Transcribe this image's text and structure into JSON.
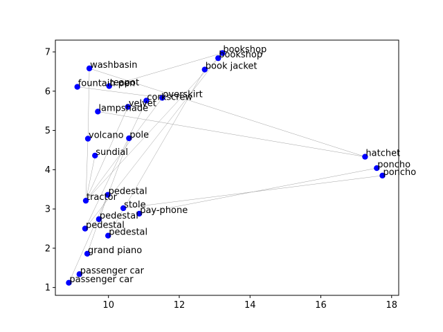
{
  "chart_data": {
    "type": "scatter",
    "title": "",
    "xlabel": "",
    "ylabel": "",
    "xlim": [
      8.5,
      18.2
    ],
    "ylim": [
      0.8,
      7.3
    ],
    "xticks": [
      10,
      12,
      14,
      16,
      18
    ],
    "yticks": [
      1,
      2,
      3,
      4,
      5,
      6,
      7
    ],
    "grid": false,
    "point_color": "#0000ff",
    "edge_color": "#a0a0a0",
    "points": [
      {
        "label": "bookshop",
        "x": 13.22,
        "y": 6.97
      },
      {
        "label": "bookshop",
        "x": 13.1,
        "y": 6.84
      },
      {
        "label": "book jacket",
        "x": 12.72,
        "y": 6.55
      },
      {
        "label": "washbasin",
        "x": 9.46,
        "y": 6.58
      },
      {
        "label": "fountain pen",
        "x": 9.12,
        "y": 6.11
      },
      {
        "label": "teapot",
        "x": 10.02,
        "y": 6.13
      },
      {
        "label": "overskirt",
        "x": 11.52,
        "y": 5.83
      },
      {
        "label": "corkscrew",
        "x": 11.07,
        "y": 5.76
      },
      {
        "label": "velvet",
        "x": 10.55,
        "y": 5.6
      },
      {
        "label": "lampshade",
        "x": 9.7,
        "y": 5.48
      },
      {
        "label": "volcano",
        "x": 9.42,
        "y": 4.79
      },
      {
        "label": "pole",
        "x": 10.58,
        "y": 4.8
      },
      {
        "label": "sundial",
        "x": 9.62,
        "y": 4.36
      },
      {
        "label": "hatchet",
        "x": 17.25,
        "y": 4.33
      },
      {
        "label": "poncho",
        "x": 17.58,
        "y": 4.04
      },
      {
        "label": "poncho",
        "x": 17.74,
        "y": 3.85
      },
      {
        "label": "pedestal",
        "x": 9.98,
        "y": 3.36
      },
      {
        "label": "tractor",
        "x": 9.36,
        "y": 3.21
      },
      {
        "label": "stole",
        "x": 10.42,
        "y": 3.02
      },
      {
        "label": "pay-phone",
        "x": 10.87,
        "y": 2.88
      },
      {
        "label": "pedestal",
        "x": 9.73,
        "y": 2.74
      },
      {
        "label": "pedestal",
        "x": 9.34,
        "y": 2.5
      },
      {
        "label": "pedestal",
        "x": 9.99,
        "y": 2.32
      },
      {
        "label": "grand piano",
        "x": 9.4,
        "y": 1.86
      },
      {
        "label": "passenger car",
        "x": 9.18,
        "y": 1.34
      },
      {
        "label": "passenger car",
        "x": 8.88,
        "y": 1.12
      }
    ],
    "edges": [
      [
        0,
        5
      ],
      [
        0,
        17
      ],
      [
        1,
        21
      ],
      [
        2,
        22
      ],
      [
        3,
        13
      ],
      [
        3,
        10
      ],
      [
        6,
        4
      ],
      [
        6,
        17
      ],
      [
        7,
        21
      ],
      [
        8,
        17
      ],
      [
        9,
        13
      ],
      [
        11,
        20
      ],
      [
        12,
        17
      ],
      [
        19,
        14
      ],
      [
        18,
        15
      ],
      [
        16,
        23
      ],
      [
        24,
        25
      ],
      [
        25,
        16
      ],
      [
        17,
        10
      ]
    ]
  }
}
